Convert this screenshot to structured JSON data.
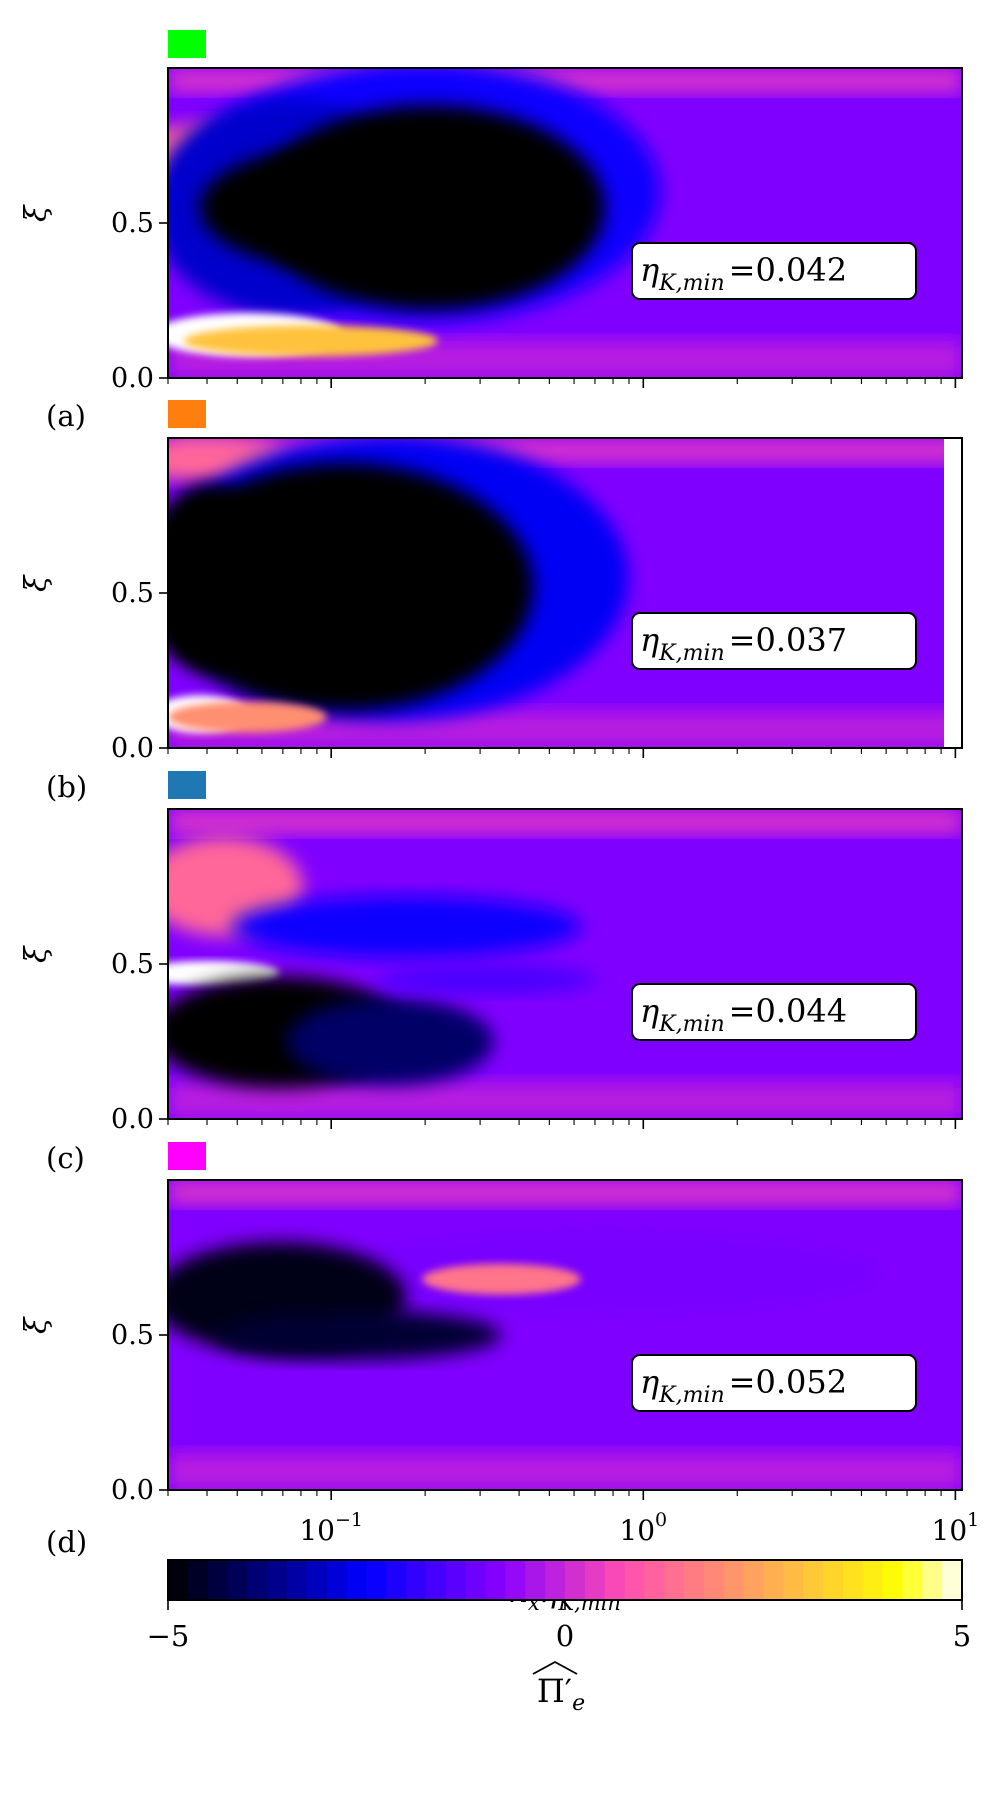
{
  "chart_data": [
    {
      "type": "heatmap",
      "panel_letter": "",
      "marker_color": "#00ff00",
      "annotation": {
        "symbol": "η",
        "sub": "K,min",
        "value": "=0.042"
      },
      "ylabel": "ξ",
      "ylim": [
        0,
        1
      ],
      "yticks": [
        "0.0",
        "0.5"
      ],
      "xscale": "log",
      "xlim": [
        0.03,
        10.5
      ],
      "x_tick_labels_visible": false
    },
    {
      "type": "heatmap",
      "panel_letter": "(a)",
      "marker_color": "#ff7f0e",
      "annotation": {
        "symbol": "η",
        "sub": "K,min",
        "value": "=0.037"
      },
      "ylabel": "ξ",
      "ylim": [
        0,
        1
      ],
      "yticks": [
        "0.0",
        "0.5"
      ],
      "xscale": "log",
      "xlim": [
        0.03,
        10.5
      ],
      "x_tick_labels_visible": false
    },
    {
      "type": "heatmap",
      "panel_letter": "(b)",
      "marker_color": "#1f77b4",
      "annotation": {
        "symbol": "η",
        "sub": "K,min",
        "value": "=0.044"
      },
      "ylabel": "ξ",
      "ylim": [
        0,
        1
      ],
      "yticks": [
        "0.0",
        "0.5"
      ],
      "xscale": "log",
      "xlim": [
        0.03,
        10.5
      ],
      "x_tick_labels_visible": false
    },
    {
      "type": "heatmap",
      "panel_letter": "(c)",
      "marker_color": "#ff00ff",
      "annotation": {
        "symbol": "η",
        "sub": "K,min",
        "value": "=0.052"
      },
      "ylabel": "ξ",
      "ylim": [
        0,
        1
      ],
      "yticks": [
        "0.0",
        "0.5"
      ],
      "xscale": "log",
      "xlim": [
        0.03,
        10.5
      ],
      "x_tick_labels_visible": true,
      "xticks": [
        {
          "base": "10",
          "exp": "−1",
          "value": 0.1
        },
        {
          "base": "10",
          "exp": "0",
          "value": 1
        },
        {
          "base": "10",
          "exp": "1",
          "value": 10
        }
      ],
      "xlabel": {
        "a": "k",
        "a_sub": "x",
        "b": "η",
        "b_sub": "K,min"
      }
    }
  ],
  "bottom_letter": "(d)",
  "colorbar": {
    "colormap": "gnuplot2",
    "min": -5,
    "max": 5,
    "levels": 40,
    "ticks": [
      "−5",
      "0",
      "5"
    ],
    "label_main": "Π′",
    "label_sub": "e"
  }
}
